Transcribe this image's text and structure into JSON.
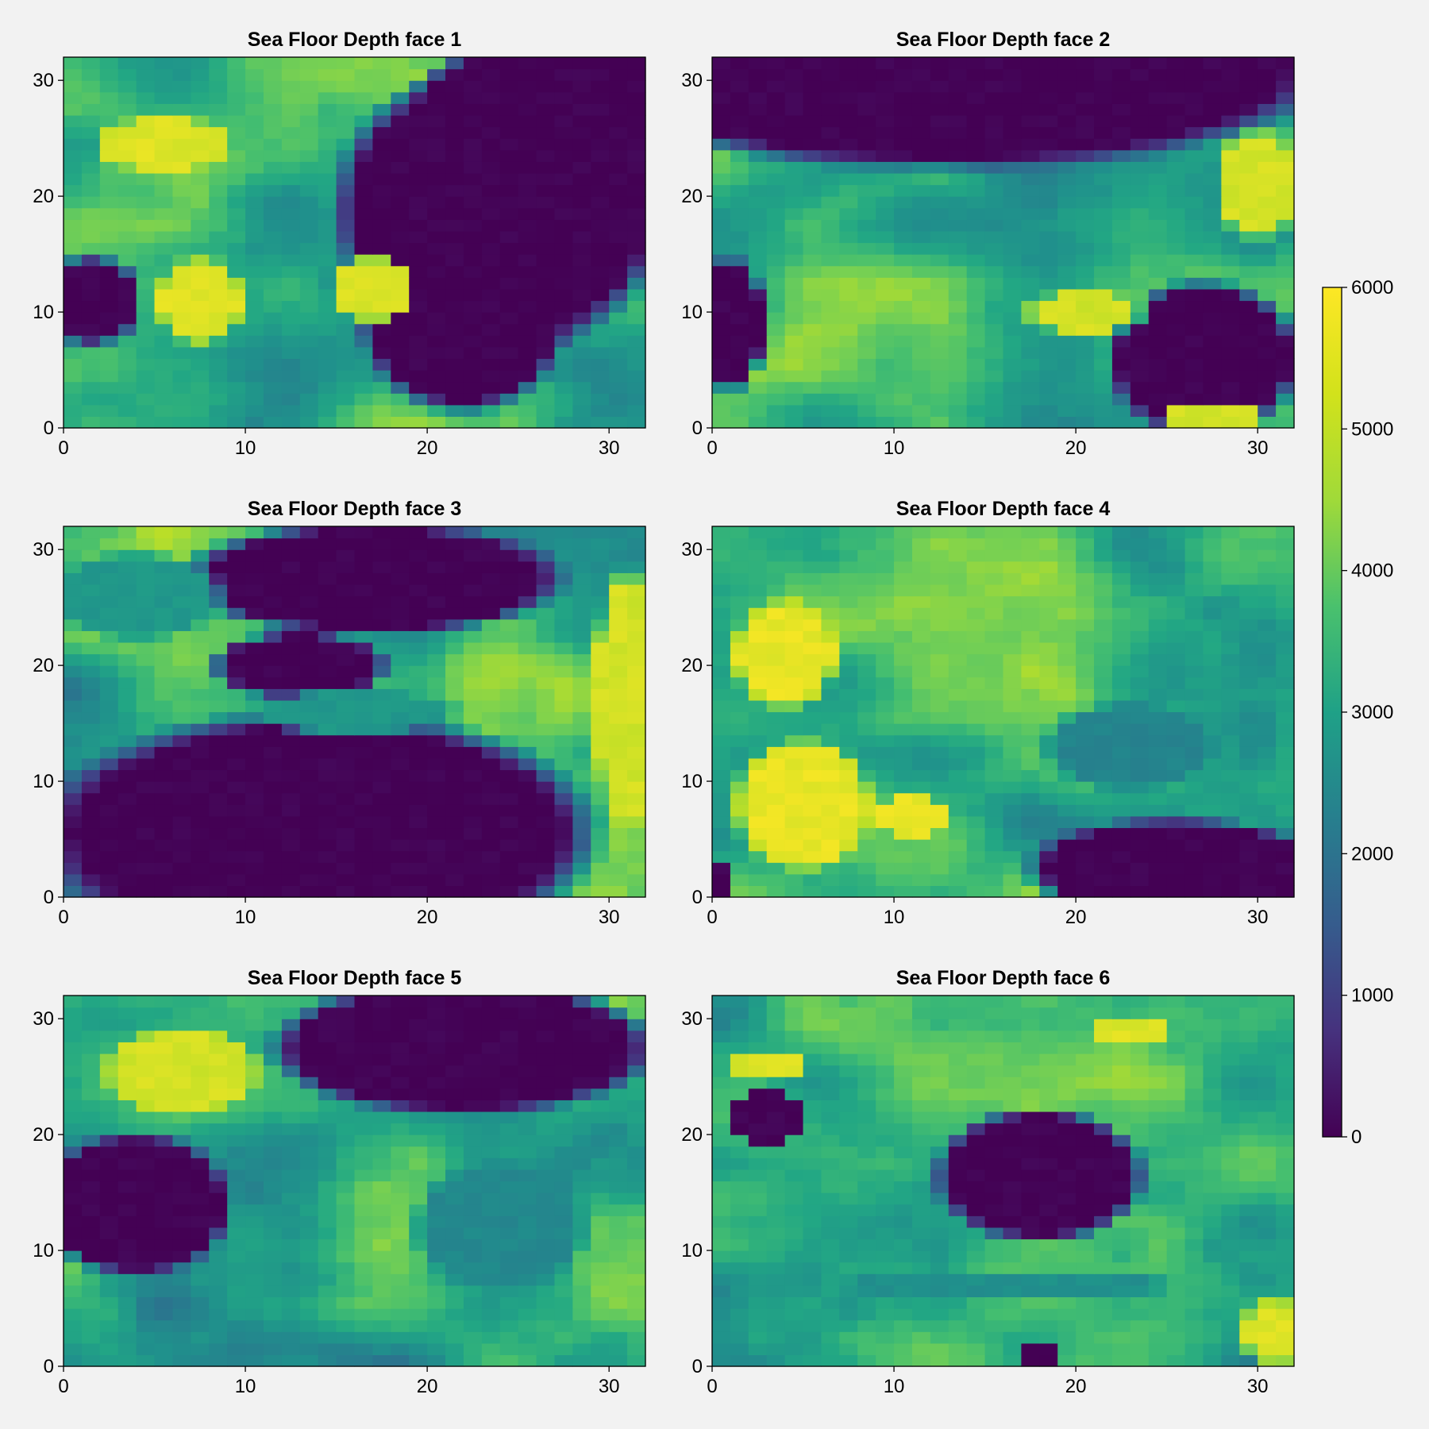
{
  "figure": {
    "background": "#f2f2f2",
    "colormap": "viridis",
    "grid": "off"
  },
  "chart_data": [
    {
      "type": "heatmap",
      "title": "Sea Floor Depth face 1",
      "xlim": [
        0,
        32
      ],
      "ylim": [
        0,
        32
      ],
      "xticks": [
        0,
        10,
        20,
        30
      ],
      "yticks": [
        0,
        10,
        20,
        30
      ],
      "resolution": [
        32,
        32
      ],
      "regions": [
        {
          "fill": 0,
          "ellipses": [
            [
              24,
              19,
              9.5,
              13
            ],
            [
              27,
              28,
              8,
              6
            ],
            [
              22,
              10,
              6,
              9
            ]
          ]
        },
        {
          "fill": 0,
          "ellipses": [
            [
              1.5,
              11,
              3,
              4
            ]
          ]
        },
        {
          "fill": 5700,
          "ellipses": [
            [
              5.5,
              24.5,
              4,
              2.5
            ],
            [
              7.5,
              11,
              2.5,
              4
            ],
            [
              17,
              12,
              2.5,
              3
            ]
          ]
        }
      ]
    },
    {
      "type": "heatmap",
      "title": "Sea Floor Depth face 2",
      "xlim": [
        0,
        32
      ],
      "ylim": [
        0,
        32
      ],
      "xticks": [
        0,
        10,
        20,
        30
      ],
      "yticks": [
        0,
        10,
        20,
        30
      ],
      "resolution": [
        32,
        32
      ],
      "regions": [
        {
          "fill": 0,
          "ellipses": [
            [
              13,
              31,
              22,
              9
            ],
            [
              27,
              6,
              5.5,
              7
            ],
            [
              1,
              9,
              2,
              6
            ]
          ]
        },
        {
          "fill": 5600,
          "ellipses": [
            [
              30,
              21,
              2.5,
              5
            ],
            [
              20.5,
              10,
              3.5,
              2
            ],
            [
              27.5,
              1,
              3,
              1.5
            ]
          ]
        }
      ]
    },
    {
      "type": "heatmap",
      "title": "Sea Floor Depth face 3",
      "xlim": [
        0,
        32
      ],
      "ylim": [
        0,
        32
      ],
      "xticks": [
        0,
        10,
        20,
        30
      ],
      "yticks": [
        0,
        10,
        20,
        30
      ],
      "resolution": [
        32,
        32
      ],
      "regions": [
        {
          "fill": 0,
          "ellipses": [
            [
              14,
              5.5,
              16,
              11
            ],
            [
              17,
              27.5,
              11,
              5
            ],
            [
              13,
              20,
              5,
              3
            ]
          ]
        },
        {
          "fill": 3200,
          "ellipses": [
            [
              4,
              26,
              5,
              4
            ],
            [
              16,
              16,
              6,
              2
            ]
          ]
        },
        {
          "fill": 5600,
          "ellipses": [
            [
              31,
              17,
              2,
              12
            ]
          ]
        }
      ]
    },
    {
      "type": "heatmap",
      "title": "Sea Floor Depth face 4",
      "xlim": [
        0,
        32
      ],
      "ylim": [
        0,
        32
      ],
      "xticks": [
        0,
        10,
        20,
        30
      ],
      "yticks": [
        0,
        10,
        20,
        30
      ],
      "resolution": [
        32,
        32
      ],
      "regions": [
        {
          "fill": 0,
          "ellipses": [
            [
              25.5,
              2.5,
              8.5,
              4.5
            ],
            [
              0.5,
              1.5,
              1,
              2
            ]
          ]
        },
        {
          "fill": 2700,
          "ellipses": [
            [
              23,
              13,
              5,
              4
            ]
          ]
        },
        {
          "fill": 5800,
          "ellipses": [
            [
              5,
              8,
              4,
              6
            ],
            [
              4,
              21,
              3,
              5
            ],
            [
              11,
              7,
              2,
              2
            ]
          ]
        }
      ]
    },
    {
      "type": "heatmap",
      "title": "Sea Floor Depth face 5",
      "xlim": [
        0,
        32
      ],
      "ylim": [
        0,
        32
      ],
      "xticks": [
        0,
        10,
        20,
        30
      ],
      "yticks": [
        0,
        10,
        20,
        30
      ],
      "resolution": [
        32,
        32
      ],
      "regions": [
        {
          "fill": 0,
          "ellipses": [
            [
              22,
              27.5,
              11,
              6
            ],
            [
              4,
              14,
              5.5,
              6.5
            ]
          ]
        },
        {
          "fill": 5600,
          "ellipses": [
            [
              6.5,
              25.5,
              4.5,
              4
            ]
          ]
        },
        {
          "fill": 2800,
          "ellipses": [
            [
              24,
              12,
              5,
              6
            ]
          ]
        }
      ]
    },
    {
      "type": "heatmap",
      "title": "Sea Floor Depth face 6",
      "xlim": [
        0,
        32
      ],
      "ylim": [
        0,
        32
      ],
      "xticks": [
        0,
        10,
        20,
        30
      ],
      "yticks": [
        0,
        10,
        20,
        30
      ],
      "resolution": [
        32,
        32
      ],
      "regions": [
        {
          "fill": 0,
          "ellipses": [
            [
              18,
              16.5,
              6,
              6
            ],
            [
              3,
              21.5,
              2.5,
              2.5
            ],
            [
              18,
              1,
              1.5,
              1.5
            ]
          ]
        },
        {
          "fill": 5700,
          "ellipses": [
            [
              3,
              26,
              2.5,
              1.5
            ],
            [
              31,
              3,
              2,
              3
            ],
            [
              23,
              29,
              2,
              1.5
            ]
          ]
        },
        {
          "fill": 3000,
          "ellipses": [
            [
              16,
              7,
              10,
              1.5
            ]
          ]
        }
      ]
    }
  ],
  "colorbar": {
    "min": 0,
    "max": 6000,
    "ticks": [
      0,
      1000,
      2000,
      3000,
      4000,
      5000,
      6000
    ]
  }
}
